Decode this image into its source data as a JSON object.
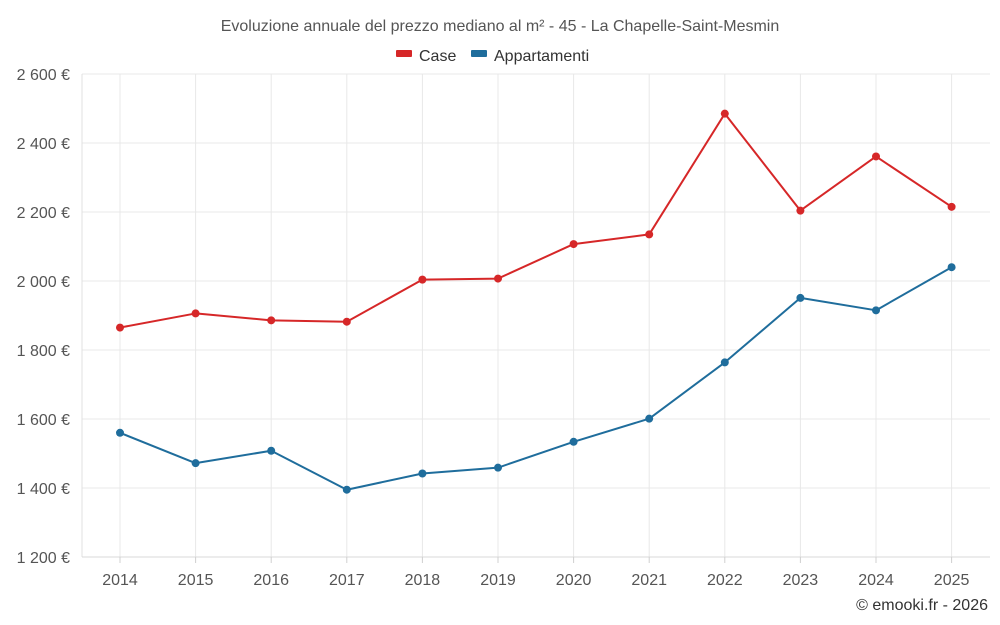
{
  "chart_data": {
    "type": "line",
    "title": "Evoluzione annuale del prezzo mediano al m² - 45 - La Chapelle-Saint-Mesmin",
    "categories": [
      "2014",
      "2015",
      "2016",
      "2017",
      "2018",
      "2019",
      "2020",
      "2021",
      "2022",
      "2023",
      "2024",
      "2025"
    ],
    "series": [
      {
        "name": "Case",
        "color": "#d62728",
        "values": [
          1865,
          1906,
          1886,
          1882,
          2004,
          2007,
          2107,
          2135,
          2485,
          2204,
          2361,
          2215
        ]
      },
      {
        "name": "Appartamenti",
        "color": "#1f6d9c",
        "values": [
          1560,
          1472,
          1508,
          1395,
          1442,
          1459,
          1534,
          1601,
          1764,
          1951,
          1915,
          2040
        ]
      }
    ],
    "y_ticks": [
      1200,
      1400,
      1600,
      1800,
      2000,
      2200,
      2400,
      2600
    ],
    "y_tick_labels": [
      "1 200 €",
      "1 400 €",
      "1 600 €",
      "1 800 €",
      "2 000 €",
      "2 200 €",
      "2 400 €",
      "2 600 €"
    ],
    "ylim": [
      1200,
      2600
    ],
    "xlabel": "",
    "ylabel": "",
    "grid": true,
    "legend_position": "top-center"
  },
  "credit": "© emooki.fr - 2026"
}
